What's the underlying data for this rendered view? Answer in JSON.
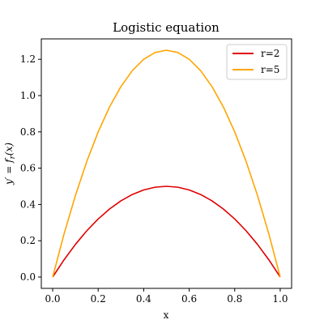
{
  "chart_data": {
    "type": "line",
    "title": "Logistic equation",
    "xlabel": "x",
    "ylabel": "y′ = f",
    "ylabel_sub": "r",
    "ylabel_tail": "(x)",
    "xlim": [
      -0.05,
      1.05
    ],
    "ylim": [
      -0.0625,
      1.3125
    ],
    "xticks": [
      0.0,
      0.2,
      0.4,
      0.6,
      0.8,
      1.0
    ],
    "xtick_labels": [
      "0.0",
      "0.2",
      "0.4",
      "0.6",
      "0.8",
      "1.0"
    ],
    "yticks": [
      0.0,
      0.2,
      0.4,
      0.6,
      0.8,
      1.0,
      1.2
    ],
    "ytick_labels": [
      "0.0",
      "0.2",
      "0.4",
      "0.6",
      "0.8",
      "1.0",
      "1.2"
    ],
    "grid": false,
    "legend_position": "top-right",
    "x": [
      0.0,
      0.05,
      0.1,
      0.15,
      0.2,
      0.25,
      0.3,
      0.35,
      0.4,
      0.45,
      0.5,
      0.55,
      0.6,
      0.65,
      0.7,
      0.75,
      0.8,
      0.85,
      0.9,
      0.95,
      1.0
    ],
    "series": [
      {
        "name": "r=2",
        "color": "#e00000",
        "values": [
          0.0,
          0.095,
          0.18,
          0.255,
          0.32,
          0.375,
          0.42,
          0.455,
          0.48,
          0.495,
          0.5,
          0.495,
          0.48,
          0.455,
          0.42,
          0.375,
          0.32,
          0.255,
          0.18,
          0.095,
          0.0
        ]
      },
      {
        "name": "r=5",
        "color": "#ffa500",
        "values": [
          0.0,
          0.2375,
          0.45,
          0.6375,
          0.8,
          0.9375,
          1.05,
          1.1375,
          1.2,
          1.2375,
          1.25,
          1.2375,
          1.2,
          1.1375,
          1.05,
          0.9375,
          0.8,
          0.6375,
          0.45,
          0.2375,
          0.0
        ]
      }
    ]
  }
}
